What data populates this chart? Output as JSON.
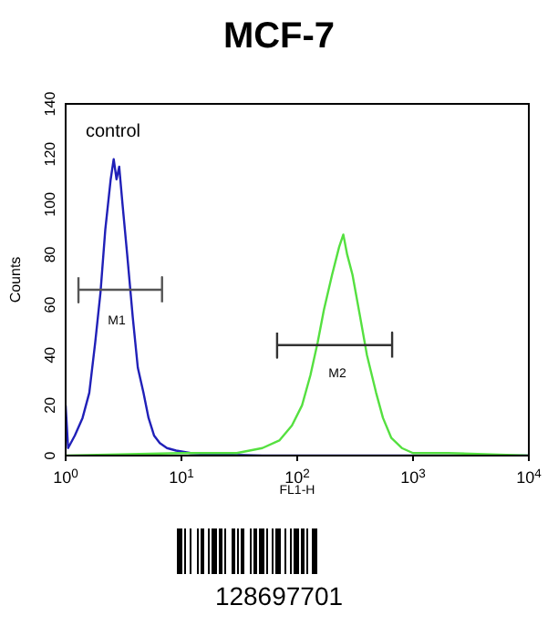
{
  "chart_data": {
    "type": "line",
    "title": "MCF-7",
    "xlabel": "FL1-H",
    "ylabel": "Counts",
    "log": "x",
    "marker": "none",
    "line_style": "solid",
    "xlim": [
      1,
      10000
    ],
    "xticks": [
      {
        "value": 1,
        "label": "10$^{0}$"
      },
      {
        "value": 10,
        "label": "10$^{1}$"
      },
      {
        "value": 100,
        "label": "10$^{2}$"
      },
      {
        "value": 1000,
        "label": "10$^{3}$"
      },
      {
        "value": 10000,
        "label": "10$^{4}$"
      }
    ],
    "ylim": [
      0,
      140
    ],
    "yticks": [
      0,
      20,
      40,
      60,
      80,
      100,
      120,
      140
    ],
    "series": [
      {
        "color": "#2020b8",
        "x": [
          1,
          1.05,
          1.2,
          1.4,
          1.6,
          1.8,
          2,
          2.2,
          2.45,
          2.6,
          2.75,
          2.9,
          3.1,
          3.4,
          3.8,
          4.2,
          4.7,
          5.2,
          5.8,
          6.5,
          7.5,
          9,
          12,
          20,
          50,
          10000
        ],
        "values": [
          20,
          3,
          8,
          15,
          25,
          45,
          65,
          90,
          110,
          118,
          110,
          115,
          100,
          80,
          55,
          35,
          25,
          15,
          8,
          5,
          3,
          2,
          1,
          0.5,
          0,
          0
        ]
      },
      {
        "color": "#55e040",
        "x": [
          1,
          10,
          30,
          50,
          70,
          90,
          110,
          130,
          150,
          170,
          200,
          230,
          250,
          270,
          300,
          350,
          400,
          480,
          550,
          650,
          800,
          1000,
          2000,
          10000
        ],
        "values": [
          0,
          1,
          1,
          3,
          6,
          12,
          20,
          32,
          45,
          58,
          72,
          83,
          88,
          80,
          72,
          55,
          40,
          25,
          15,
          7,
          3,
          1,
          1,
          0
        ]
      },
      {
        "color": "#555555",
        "x": [
          1.29,
          1.29,
          1.29,
          6.8,
          6.8,
          6.8
        ],
        "values": [
          71,
          61,
          66,
          66,
          71,
          61
        ]
      },
      {
        "color": "#333333",
        "x": [
          67,
          67,
          67,
          660,
          660,
          660
        ],
        "values": [
          49,
          39,
          44,
          44,
          49,
          39
        ]
      }
    ],
    "annotations": [
      "control",
      "M1",
      "M2",
      "128697701"
    ]
  }
}
